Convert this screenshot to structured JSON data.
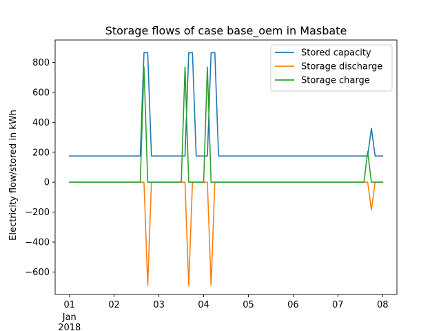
{
  "chart_data": {
    "type": "line",
    "title": "Storage flows of case base_oem in Masbate",
    "xlabel": "",
    "ylabel": "Electricity flow/stored in kWh",
    "xlim": [
      "2018-01-01T00:00",
      "2018-01-08T00:00"
    ],
    "ylim": [
      -750,
      950
    ],
    "yticks": [
      -600,
      -400,
      -200,
      0,
      200,
      400,
      600,
      800
    ],
    "ytick_labels": [
      "−600",
      "−400",
      "−200",
      "0",
      "200",
      "400",
      "600",
      "800"
    ],
    "xticks": [
      "2018-01-01T00:00",
      "2018-01-02T00:00",
      "2018-01-03T00:00",
      "2018-01-04T00:00",
      "2018-01-05T00:00",
      "2018-01-06T00:00",
      "2018-01-07T00:00",
      "2018-01-08T00:00"
    ],
    "xtick_labels": [
      "01",
      "02",
      "03",
      "04",
      "05",
      "06",
      "07",
      "08"
    ],
    "xtick_sublabels": [
      "Jan",
      "2018"
    ],
    "grid": false,
    "legend_position": "upper right",
    "series": [
      {
        "name": "Stored capacity",
        "color": "#1f77b4",
        "x": [
          "2018-01-01T00:00",
          "2018-01-02T14:00",
          "2018-01-02T16:00",
          "2018-01-02T18:00",
          "2018-01-02T20:00",
          "2018-01-03T14:00",
          "2018-01-03T16:00",
          "2018-01-03T18:00",
          "2018-01-03T20:00",
          "2018-01-04T02:00",
          "2018-01-04T04:00",
          "2018-01-04T06:00",
          "2018-01-04T08:00",
          "2018-01-07T16:00",
          "2018-01-07T18:00",
          "2018-01-07T20:00",
          "2018-01-08T00:00"
        ],
        "values": [
          175,
          175,
          865,
          865,
          175,
          175,
          865,
          865,
          175,
          175,
          865,
          865,
          175,
          175,
          360,
          175,
          175
        ]
      },
      {
        "name": "Storage discharge",
        "color": "#ff7f0e",
        "x": [
          "2018-01-01T00:00",
          "2018-01-02T16:00",
          "2018-01-02T18:00",
          "2018-01-02T20:00",
          "2018-01-03T14:00",
          "2018-01-03T16:00",
          "2018-01-03T18:00",
          "2018-01-04T02:00",
          "2018-01-04T04:00",
          "2018-01-04T06:00",
          "2018-01-07T16:00",
          "2018-01-07T18:00",
          "2018-01-07T20:00",
          "2018-01-08T00:00"
        ],
        "values": [
          0,
          0,
          -690,
          0,
          0,
          -690,
          0,
          0,
          -690,
          0,
          0,
          -185,
          0,
          0
        ]
      },
      {
        "name": "Storage charge",
        "color": "#2ca02c",
        "x": [
          "2018-01-01T00:00",
          "2018-01-02T14:00",
          "2018-01-02T16:00",
          "2018-01-02T18:00",
          "2018-01-03T12:00",
          "2018-01-03T14:00",
          "2018-01-03T16:00",
          "2018-01-04T00:00",
          "2018-01-04T02:00",
          "2018-01-04T04:00",
          "2018-01-07T14:00",
          "2018-01-07T16:00",
          "2018-01-07T18:00",
          "2018-01-08T00:00"
        ],
        "values": [
          0,
          0,
          770,
          0,
          0,
          770,
          0,
          0,
          770,
          0,
          0,
          205,
          0,
          0
        ]
      }
    ]
  }
}
